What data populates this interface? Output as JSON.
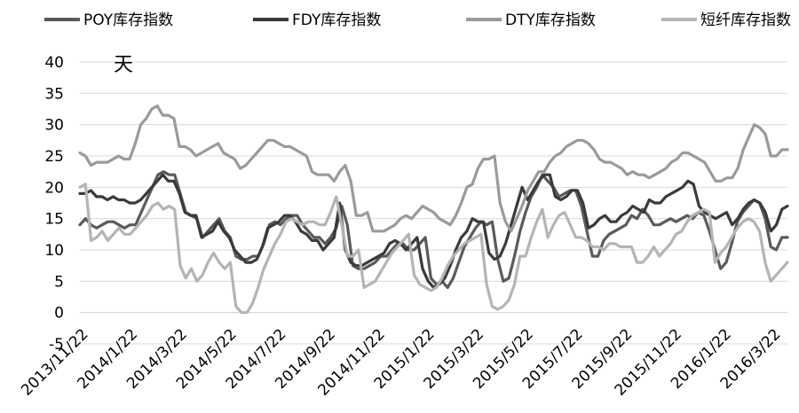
{
  "chart_data": {
    "type": "line",
    "title": "",
    "xlabel": "",
    "ylabel": "天",
    "ylim": [
      -5,
      40
    ],
    "yticks": [
      -5,
      0,
      5,
      10,
      15,
      20,
      25,
      30,
      35,
      40
    ],
    "x_tick_labels": [
      "2013/11/22",
      "2014/1/22",
      "2014/3/22",
      "2014/5/22",
      "2014/7/22",
      "2014/9/22",
      "2014/11/22",
      "2015/1/22",
      "2015/3/22",
      "2015/5/22",
      "2015/7/22",
      "2015/9/22",
      "2015/11/22",
      "2016/1/22",
      "2016/3/22"
    ],
    "grid": "horizontal",
    "legend_position": "top",
    "series": [
      {
        "name": "POY库存指数",
        "color": "#5a5a5a",
        "values": [
          14,
          15,
          14,
          13.5,
          14,
          14.5,
          14.5,
          14,
          13.5,
          14,
          14,
          16,
          18,
          20,
          22,
          22.5,
          22,
          22,
          19,
          16,
          15.5,
          15,
          12,
          13,
          14,
          15,
          13,
          12,
          9,
          8.5,
          8.5,
          9,
          9,
          11,
          14,
          14.5,
          14,
          15,
          15.5,
          15.5,
          14,
          13,
          12,
          12,
          11,
          12,
          13.5,
          17,
          14,
          7.5,
          7,
          7,
          7.5,
          8,
          9,
          9,
          10,
          11,
          11,
          10,
          10,
          11,
          12,
          5.5,
          4.5,
          5,
          4,
          5.5,
          8,
          10.5,
          12,
          13.5,
          14.5,
          14,
          14.5,
          8.5,
          5,
          5.5,
          9,
          13,
          16,
          18.5,
          20,
          22,
          21,
          20,
          18.5,
          19,
          19.5,
          19.5,
          17,
          13,
          9,
          9,
          11.5,
          12.5,
          13,
          13.5,
          14,
          15.5,
          15,
          16.5,
          15.5,
          14,
          14,
          14.5,
          15,
          14.5,
          15,
          15.5,
          15,
          16,
          15.5,
          13,
          10,
          7,
          8,
          11,
          14.5,
          16,
          17,
          18,
          17.5,
          15,
          10.5,
          10,
          12,
          12
        ]
      },
      {
        "name": "FDY库存指数",
        "color": "#3a3a3a",
        "values": [
          19,
          19,
          19.5,
          18.5,
          18.5,
          18,
          18.5,
          18,
          18,
          17.5,
          17.5,
          18,
          19,
          20,
          21,
          22,
          21,
          21,
          19,
          16,
          15.5,
          15.5,
          12,
          12.5,
          13,
          14.5,
          13,
          12,
          10,
          9,
          8,
          8,
          8.5,
          10.5,
          13.5,
          14,
          14.5,
          15.5,
          15.5,
          14.5,
          13,
          12.5,
          11.5,
          11.5,
          10,
          11,
          12,
          17.5,
          10,
          8,
          7.5,
          7.5,
          8,
          8.5,
          9,
          9.5,
          11,
          11.5,
          11,
          10,
          11,
          12,
          7,
          5,
          4,
          4.5,
          5.5,
          7.5,
          10,
          12,
          13,
          15,
          14.5,
          14.5,
          9.5,
          8.5,
          9,
          11,
          14,
          17,
          20,
          18,
          19.5,
          21,
          22,
          22,
          18.5,
          18,
          18.5,
          19.5,
          19.5,
          17.5,
          13.5,
          14,
          15,
          15.5,
          14.5,
          14.5,
          15.5,
          16,
          17,
          16.5,
          16,
          18,
          17.5,
          17.5,
          18.5,
          19,
          19.5,
          20,
          21,
          20.5,
          17,
          16,
          15.5,
          15,
          15.5,
          16,
          14,
          15,
          16.5,
          17.5,
          18,
          17.5,
          16,
          13,
          14,
          16.5,
          17
        ]
      },
      {
        "name": "DTY库存指数",
        "color": "#9a9a9a",
        "values": [
          25.5,
          25,
          23.5,
          24,
          24,
          24,
          24.5,
          25,
          24.5,
          24.5,
          27,
          30,
          31,
          32.5,
          33,
          31.5,
          31.5,
          31,
          26.5,
          26.5,
          26,
          25,
          25.5,
          26,
          26.5,
          27,
          25.5,
          25,
          24.5,
          23,
          23.5,
          24.5,
          25.5,
          26.5,
          27.5,
          27.5,
          27,
          26.5,
          26.5,
          26,
          25.5,
          25,
          22.5,
          22,
          22,
          22,
          21,
          22.5,
          23.5,
          21,
          15.5,
          15.5,
          16,
          13,
          13,
          13,
          13.5,
          14,
          15,
          15.5,
          15,
          16,
          17,
          16.5,
          16,
          15,
          14.5,
          14,
          15.5,
          17.5,
          20,
          20.5,
          23,
          24.5,
          24.5,
          25,
          17.5,
          14.5,
          13,
          15,
          17,
          19.5,
          21,
          22.5,
          22.5,
          24,
          25,
          25.5,
          26.5,
          27,
          27.5,
          27.5,
          27,
          26,
          24.5,
          24,
          24,
          23.5,
          23,
          22,
          22.5,
          22,
          22,
          21.5,
          22,
          22.5,
          23,
          24,
          24.5,
          25.5,
          25.5,
          25,
          24.5,
          24,
          22.5,
          21,
          21,
          21.5,
          21.5,
          23,
          26,
          28,
          30,
          29.5,
          28.5,
          25,
          25,
          26,
          26
        ]
      },
      {
        "name": "短纤库存指数",
        "color": "#b4b4b4",
        "values": [
          20,
          20.5,
          11.5,
          12,
          13,
          11.5,
          12.5,
          13.5,
          12.5,
          12.5,
          13.5,
          14.5,
          15.5,
          17,
          17.5,
          16.5,
          17,
          16.5,
          7.5,
          5.5,
          7,
          5,
          6,
          8,
          9.5,
          8,
          7,
          8,
          1,
          0,
          0,
          1.5,
          4,
          7,
          9,
          11,
          12.5,
          14.5,
          15,
          14.5,
          14,
          14.5,
          14.5,
          14,
          14,
          16,
          18.5,
          14,
          9,
          9,
          10,
          4,
          4.5,
          5,
          6.5,
          8,
          9.5,
          10.5,
          11.5,
          12.5,
          6,
          4.5,
          4,
          3.5,
          4,
          5.5,
          7.5,
          9,
          10,
          11,
          11.5,
          12,
          12.5,
          4.5,
          1,
          0.5,
          1,
          2,
          4.5,
          9,
          9,
          12,
          14.5,
          16.5,
          12,
          14,
          15.5,
          16,
          14,
          12,
          12,
          11.5,
          10.5,
          10.5,
          10,
          11,
          11,
          10.5,
          10.5,
          10.5,
          8,
          8,
          9,
          10.5,
          9,
          10,
          11,
          12.5,
          13,
          14.5,
          15.5,
          16,
          16.5,
          16,
          8,
          9.5,
          10.5,
          12,
          13.5,
          14.5,
          15,
          14.5,
          13,
          8,
          5,
          6,
          7,
          8
        ]
      }
    ]
  }
}
